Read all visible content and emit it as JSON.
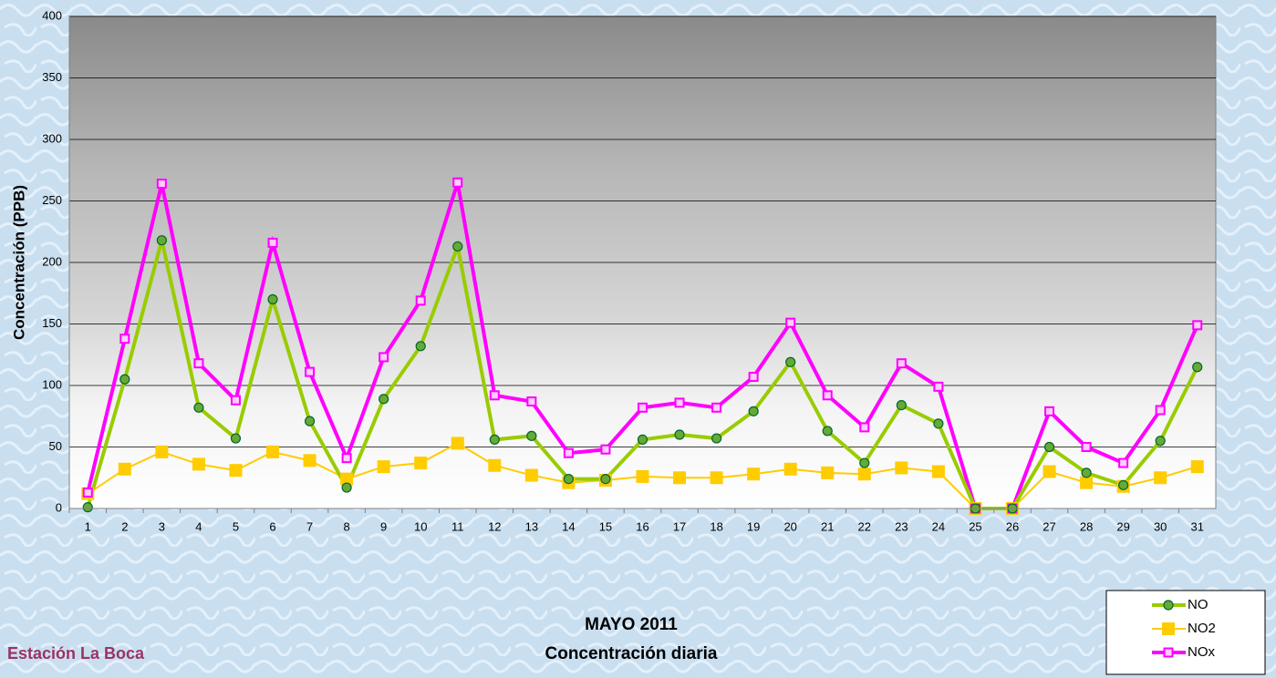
{
  "chart_data": {
    "type": "line",
    "title": "MAYO 2011",
    "subtitle": "Concentración diaria",
    "annotation": "Estación La Boca",
    "y_label": "Concentración  (PPB)",
    "categories": [
      "1",
      "2",
      "3",
      "4",
      "5",
      "6",
      "7",
      "8",
      "9",
      "10",
      "11",
      "12",
      "13",
      "14",
      "15",
      "16",
      "17",
      "18",
      "19",
      "20",
      "21",
      "22",
      "23",
      "24",
      "25",
      "26",
      "27",
      "28",
      "29",
      "30",
      "31"
    ],
    "series": [
      {
        "name": "NO",
        "color": "#99cc00",
        "values": [
          1,
          105,
          218,
          82,
          57,
          170,
          71,
          17,
          89,
          132,
          213,
          56,
          59,
          24,
          24,
          56,
          60,
          57,
          79,
          119,
          63,
          37,
          84,
          69,
          0,
          0,
          50,
          29,
          19,
          55,
          115
        ]
      },
      {
        "name": "NO2",
        "color": "#ffcc00",
        "values": [
          12,
          32,
          46,
          36,
          31,
          46,
          39,
          24,
          34,
          37,
          53,
          35,
          27,
          21,
          23,
          26,
          25,
          25,
          28,
          32,
          29,
          28,
          33,
          30,
          0,
          0,
          30,
          21,
          18,
          25,
          34
        ]
      },
      {
        "name": "NOx",
        "color": "#ff00ff",
        "values": [
          13,
          138,
          264,
          118,
          88,
          216,
          111,
          41,
          123,
          169,
          265,
          92,
          87,
          45,
          48,
          82,
          86,
          82,
          107,
          151,
          92,
          66,
          118,
          99,
          0,
          0,
          79,
          50,
          37,
          80,
          149
        ]
      }
    ],
    "ylim": [
      0,
      400
    ],
    "yticks": [
      0,
      50,
      100,
      150,
      200,
      250,
      300,
      350,
      400
    ],
    "grid": true,
    "legend": "bottom-right"
  }
}
